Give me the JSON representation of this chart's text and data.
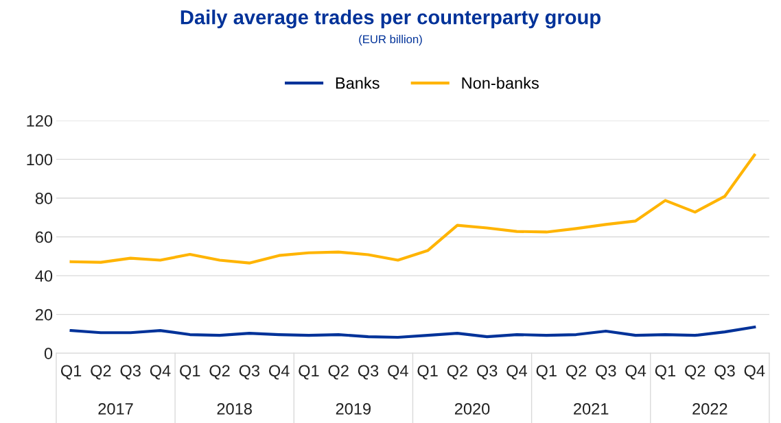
{
  "chart_data": {
    "type": "line",
    "title": "Daily average trades per counterparty group",
    "subtitle": "(EUR billion)",
    "categories": [
      "Q1",
      "Q2",
      "Q3",
      "Q4",
      "Q1",
      "Q2",
      "Q3",
      "Q4",
      "Q1",
      "Q2",
      "Q3",
      "Q4",
      "Q1",
      "Q2",
      "Q3",
      "Q4",
      "Q1",
      "Q2",
      "Q3",
      "Q4",
      "Q1",
      "Q2",
      "Q3",
      "Q4"
    ],
    "annotations": [
      "2017",
      "2018",
      "2019",
      "2020",
      "2021",
      "2022"
    ],
    "series": [
      {
        "name": "Banks",
        "color": "#003299",
        "values": [
          11.7,
          10.6,
          10.6,
          11.7,
          9.6,
          9.2,
          10.3,
          9.6,
          9.2,
          9.6,
          8.5,
          8.2,
          9.2,
          10.3,
          8.5,
          9.6,
          9.2,
          9.6,
          11.4,
          9.2,
          9.6,
          9.2,
          11,
          13.5
        ]
      },
      {
        "name": "Non-banks",
        "color": "#ffb400",
        "values": [
          47.2,
          46.9,
          49,
          48,
          51,
          48,
          46.5,
          50.4,
          51.8,
          52.2,
          50.8,
          48,
          52.9,
          66,
          64.6,
          62.8,
          62.5,
          64.3,
          66.4,
          68.2,
          78.8,
          72.8,
          80.9,
          102.2
        ]
      }
    ],
    "ylim": [
      0,
      120
    ],
    "yticks": [
      0,
      20,
      40,
      60,
      80,
      100,
      120
    ],
    "grid": "y",
    "legend": "top",
    "line_style": "solid",
    "marker": "none"
  }
}
